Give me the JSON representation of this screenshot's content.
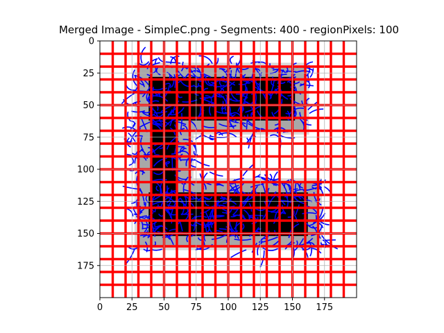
{
  "chart_data": {
    "type": "heatmap",
    "title": "Merged Image - SimpleC.png - Segments: 400 - regionPixels: 100",
    "xlabel": "",
    "ylabel": "",
    "xlim": [
      0,
      200
    ],
    "ylim": [
      200,
      0
    ],
    "x_ticks": [
      0,
      25,
      50,
      75,
      100,
      125,
      150,
      175
    ],
    "y_ticks": [
      0,
      25,
      50,
      75,
      100,
      125,
      150,
      175
    ],
    "grid": true,
    "image_shape": "C",
    "c_outer": {
      "x0": 30,
      "x1": 170,
      "y0": 20,
      "y1": 160
    },
    "c_top_arm": {
      "x0": 30,
      "x1": 160,
      "y0": 20,
      "y1": 70
    },
    "c_spine": {
      "x0": 30,
      "x1": 70,
      "y0": 20,
      "y1": 160
    },
    "c_bottom_arm": {
      "x0": 30,
      "x1": 170,
      "y0": 110,
      "y1": 160
    },
    "segment_grid_lines_x": [
      10,
      20,
      30,
      40,
      50,
      60,
      70,
      80,
      90,
      100,
      110,
      120,
      130,
      140,
      150,
      160,
      170,
      180,
      190
    ],
    "segment_grid_lines_y": [
      10,
      20,
      30,
      40,
      50,
      60,
      70,
      80,
      90,
      100,
      110,
      120,
      130,
      140,
      150,
      160,
      170,
      180,
      190
    ],
    "colors": {
      "segment_boundary": "#ff0000",
      "contours": "#0000ff",
      "shape_dark": "#000000",
      "shape_gray": "#a8a8a8",
      "shape_light": "#d9d9d9",
      "grid": "#b0b0b0"
    }
  }
}
